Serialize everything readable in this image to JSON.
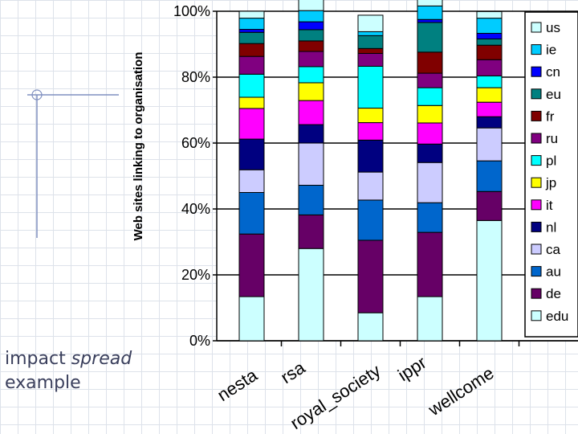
{
  "caption": {
    "line1_prefix": "impact",
    "line1_emph": "spread",
    "line2": "example"
  },
  "chart_data": {
    "type": "bar",
    "stacked": true,
    "normalized": true,
    "ylabel": "Web sites linking to organisation",
    "xlabel": "",
    "ylim": [
      0,
      100
    ],
    "yticks": [
      "0%",
      "20%",
      "40%",
      "60%",
      "80%",
      "100%"
    ],
    "grid": true,
    "legend": "right",
    "categories": [
      "nesta",
      "rsa",
      "royal_society",
      "ippr",
      "wellcome"
    ],
    "series": [
      {
        "name": "edu",
        "color": "#ccffff",
        "values": [
          13.4,
          28.0,
          8.5,
          13.4,
          36.5
        ]
      },
      {
        "name": "de",
        "color": "#660066",
        "values": [
          19.0,
          10.2,
          22.0,
          19.5,
          8.8
        ]
      },
      {
        "name": "au",
        "color": "#0066cc",
        "values": [
          12.6,
          9.0,
          12.2,
          9.0,
          9.3
        ]
      },
      {
        "name": "ca",
        "color": "#ccccff",
        "values": [
          6.9,
          12.8,
          8.5,
          12.2,
          10.0
        ]
      },
      {
        "name": "nl",
        "color": "#000080",
        "values": [
          9.3,
          5.6,
          9.7,
          5.6,
          3.4
        ]
      },
      {
        "name": "it",
        "color": "#ff00ff",
        "values": [
          9.3,
          7.3,
          5.3,
          6.4,
          4.4
        ]
      },
      {
        "name": "jp",
        "color": "#ffff00",
        "values": [
          3.4,
          5.4,
          4.4,
          5.3,
          4.4
        ]
      },
      {
        "name": "pl",
        "color": "#00ffff",
        "values": [
          7.0,
          4.9,
          12.7,
          5.4,
          3.6
        ]
      },
      {
        "name": "ru",
        "color": "#800080",
        "values": [
          5.4,
          4.6,
          3.9,
          4.4,
          4.9
        ]
      },
      {
        "name": "fr",
        "color": "#800000",
        "values": [
          3.9,
          3.2,
          1.5,
          6.4,
          4.4
        ]
      },
      {
        "name": "eu",
        "color": "#008080",
        "values": [
          3.4,
          3.4,
          3.9,
          9.0,
          1.9
        ]
      },
      {
        "name": "cn",
        "color": "#0000ff",
        "values": [
          0.9,
          2.4,
          0.0,
          0.9,
          1.7
        ]
      },
      {
        "name": "ie",
        "color": "#00ccff",
        "values": [
          3.4,
          3.4,
          1.2,
          4.1,
          4.6
        ]
      },
      {
        "name": "us",
        "color": "#ccffff",
        "values": [
          2.1,
          3.4,
          5.0,
          2.0,
          2.0
        ]
      }
    ]
  }
}
